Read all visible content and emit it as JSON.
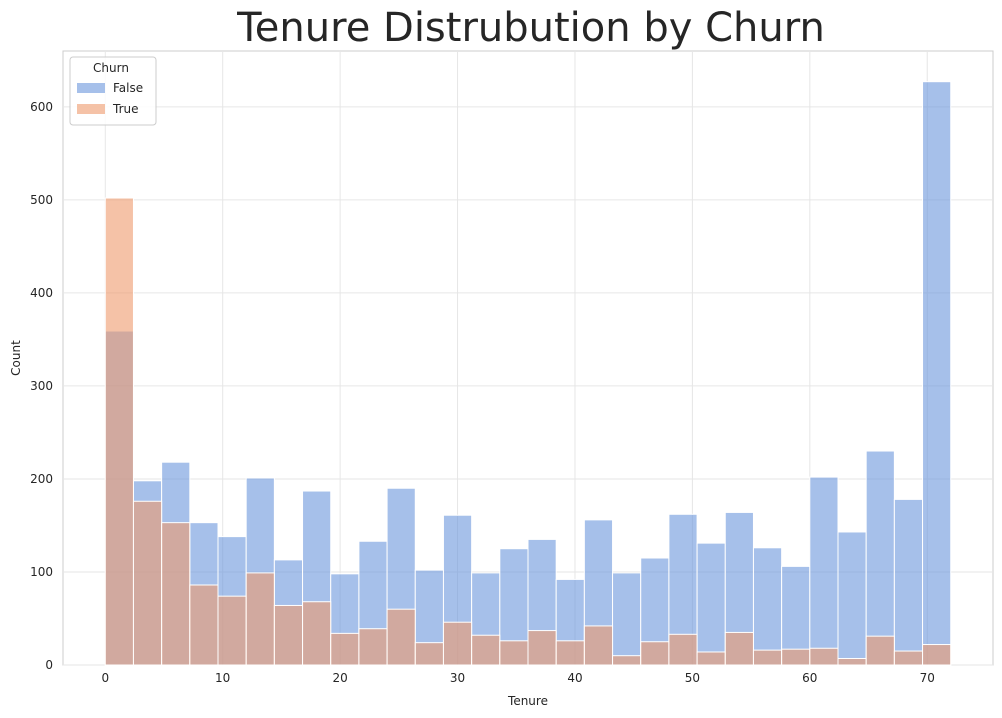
{
  "chart_data": {
    "type": "bar",
    "title": "Tenure Distrubution by Churn",
    "xlabel": "Tenure",
    "ylabel": "Count",
    "xlim": [
      -3.6,
      75.6
    ],
    "ylim": [
      0,
      660
    ],
    "xticks": [
      0,
      10,
      20,
      30,
      40,
      50,
      60,
      70
    ],
    "yticks": [
      0,
      100,
      200,
      300,
      400,
      500,
      600
    ],
    "bin_edges": [
      0,
      2.4,
      4.8,
      7.2,
      9.6,
      12,
      14.4,
      16.8,
      19.2,
      21.6,
      24,
      26.4,
      28.8,
      31.2,
      33.6,
      36,
      38.4,
      40.8,
      43.2,
      45.6,
      48,
      50.4,
      52.8,
      55.2,
      57.6,
      60,
      62.4,
      64.8,
      67.2,
      69.6,
      72
    ],
    "grid": true,
    "legend": {
      "title": "Churn",
      "position": "top-left"
    },
    "series": [
      {
        "name": "False",
        "color": "#6a96dc",
        "values": [
          359,
          198,
          218,
          153,
          138,
          201,
          113,
          187,
          98,
          133,
          190,
          102,
          161,
          99,
          125,
          135,
          92,
          156,
          99,
          115,
          162,
          131,
          164,
          126,
          106,
          202,
          143,
          230,
          178,
          627
        ]
      },
      {
        "name": "True",
        "color": "#ee9a6c",
        "values": [
          502,
          176,
          153,
          86,
          74,
          99,
          64,
          68,
          34,
          39,
          60,
          24,
          46,
          32,
          26,
          37,
          26,
          42,
          10,
          25,
          33,
          14,
          35,
          16,
          17,
          18,
          7,
          31,
          15,
          22
        ]
      }
    ]
  }
}
